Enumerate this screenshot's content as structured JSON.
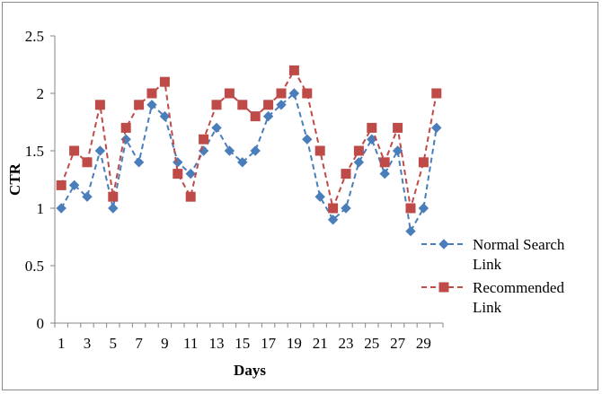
{
  "chart_data": {
    "type": "line",
    "xlabel": "Days",
    "ylabel": "CTR",
    "ylim": [
      0,
      2.5
    ],
    "yticks": [
      "0",
      "0.5",
      "1",
      "1.5",
      "2",
      "2.5"
    ],
    "x": [
      1,
      2,
      3,
      4,
      5,
      6,
      7,
      8,
      9,
      10,
      11,
      12,
      13,
      14,
      15,
      16,
      17,
      18,
      19,
      20,
      21,
      22,
      23,
      24,
      25,
      26,
      27,
      28,
      29,
      30
    ],
    "xtick_labels": [
      "1",
      "3",
      "5",
      "7",
      "9",
      "11",
      "13",
      "15",
      "17",
      "19",
      "21",
      "23",
      "25",
      "27",
      "29"
    ],
    "grid": false,
    "legend_position": "right",
    "series": [
      {
        "name": "Normal Search Link",
        "legend_lines": [
          "Normal Search",
          "Link"
        ],
        "color": "#4a7ebb",
        "marker": "diamond",
        "line_style": "dashed",
        "values": [
          1.0,
          1.2,
          1.1,
          1.5,
          1.0,
          1.6,
          1.4,
          1.9,
          1.8,
          1.4,
          1.3,
          1.5,
          1.7,
          1.5,
          1.4,
          1.5,
          1.8,
          1.9,
          2.0,
          1.6,
          1.1,
          0.9,
          1.0,
          1.4,
          1.6,
          1.3,
          1.5,
          0.8,
          1.0,
          1.7
        ]
      },
      {
        "name": "Recommended Link",
        "legend_lines": [
          "Recommended",
          "Link"
        ],
        "color": "#be4b48",
        "marker": "square",
        "line_style": "dashed",
        "values": [
          1.2,
          1.5,
          1.4,
          1.9,
          1.1,
          1.7,
          1.9,
          2.0,
          2.1,
          1.3,
          1.1,
          1.6,
          1.9,
          2.0,
          1.9,
          1.8,
          1.9,
          2.0,
          2.2,
          2.0,
          1.5,
          1.0,
          1.3,
          1.5,
          1.7,
          1.4,
          1.7,
          1.0,
          1.4,
          2.0
        ]
      }
    ]
  }
}
